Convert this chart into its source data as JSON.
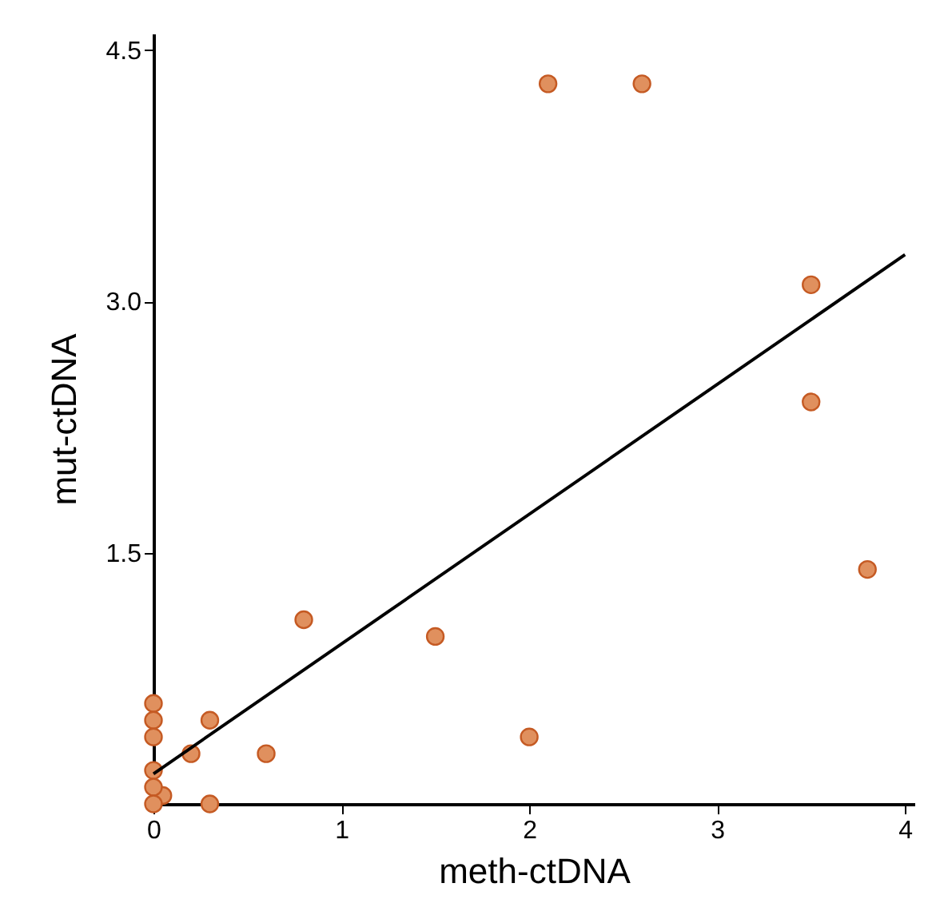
{
  "chart_data": {
    "type": "scatter",
    "xlabel": "meth-ctDNA",
    "ylabel": "mut-ctDNA",
    "xlim": [
      0,
      4.05
    ],
    "ylim": [
      0,
      4.6
    ],
    "xticks": [
      0,
      1,
      2,
      3,
      4
    ],
    "yticks": [
      {
        "value": 1.5,
        "label": "1.5"
      },
      {
        "value": 3,
        "label": "3.0"
      },
      {
        "value": 4.5,
        "label": "4.5"
      }
    ],
    "marker": "circle",
    "series": [
      {
        "color": "#e0905e",
        "x": [
          2.1,
          2.6,
          3.5,
          3.5,
          3.8,
          0.8,
          1.5,
          2.0,
          0.6,
          0.3,
          0.2,
          0.3,
          0.05,
          0,
          0,
          0,
          0,
          0,
          0
        ],
        "values": [
          4.3,
          4.3,
          3.1,
          2.4,
          1.4,
          1.1,
          1.0,
          0.4,
          0.3,
          0.5,
          0.3,
          0,
          0.05,
          0.6,
          0.5,
          0.4,
          0.2,
          0.1,
          0
        ]
      },
      {
        "type": "line",
        "color": "#000000",
        "x": [
          0,
          4
        ],
        "values": [
          0.18,
          3.28
        ],
        "marker": "none",
        "line_style": "solid"
      }
    ]
  }
}
